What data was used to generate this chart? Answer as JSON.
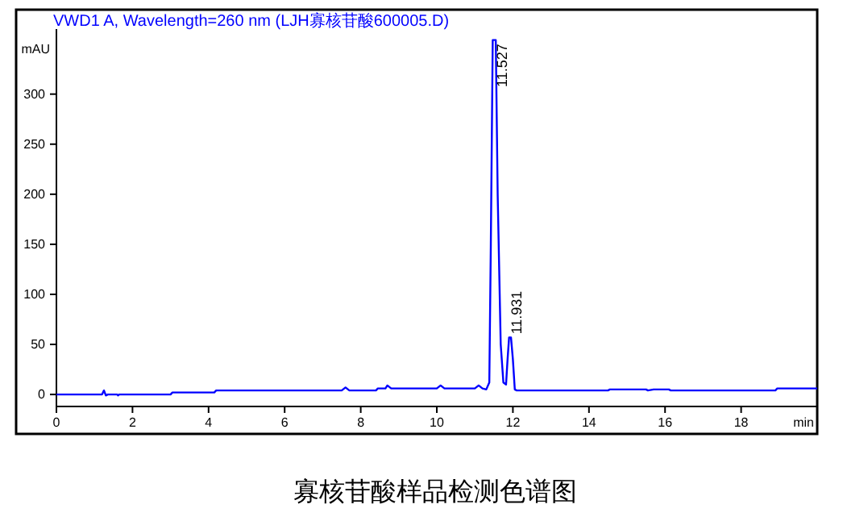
{
  "chart_data": {
    "type": "line",
    "title": "寡核苷酸样品检测色谱图",
    "subtitle": "VWD1 A, Wavelength=260 nm (LJH寡核苷酸600005.D)",
    "ylabel": "mAU",
    "xlim": [
      0,
      20
    ],
    "xticks": [
      0,
      2,
      4,
      6,
      8,
      10,
      12,
      14,
      16,
      18,
      {
        "value": 20,
        "label": "min"
      }
    ],
    "ylim": [
      -12,
      365
    ],
    "yticks": [
      0,
      50,
      100,
      150,
      200,
      250,
      300
    ],
    "grid": false,
    "series": [
      {
        "color": "#0000ff",
        "x": [
          0,
          1.2,
          1.25,
          1.3,
          1.35,
          1.6,
          1.62,
          1.65,
          3.0,
          3.05,
          4.15,
          4.2,
          7.5,
          7.6,
          7.7,
          8.4,
          8.45,
          8.65,
          8.7,
          8.8,
          10.0,
          10.1,
          10.2,
          11.0,
          11.1,
          11.2,
          11.3,
          11.38,
          11.42,
          11.47,
          11.55,
          11.6,
          11.68,
          11.75,
          11.82,
          11.86,
          11.9,
          11.95,
          12.0,
          12.05,
          12.1,
          14.5,
          14.55,
          15.5,
          15.55,
          15.7,
          16.1,
          16.15,
          18.9,
          18.95,
          20
        ],
        "values": [
          0,
          0,
          4,
          -1,
          0,
          0,
          -1,
          0,
          0,
          2,
          2,
          4,
          4,
          7,
          4,
          4,
          6,
          6,
          9,
          6,
          6,
          9,
          6,
          6,
          9,
          6,
          5,
          12,
          150,
          354,
          354,
          200,
          50,
          12,
          10,
          35,
          57,
          57,
          35,
          5,
          4,
          4,
          5,
          5,
          4,
          5,
          5,
          4,
          4,
          6,
          6
        ]
      }
    ],
    "annotations": [
      {
        "text": "11.527",
        "x": 11.55,
        "y": 354
      },
      {
        "text": "11.931",
        "x": 11.93,
        "y": 57
      }
    ]
  }
}
